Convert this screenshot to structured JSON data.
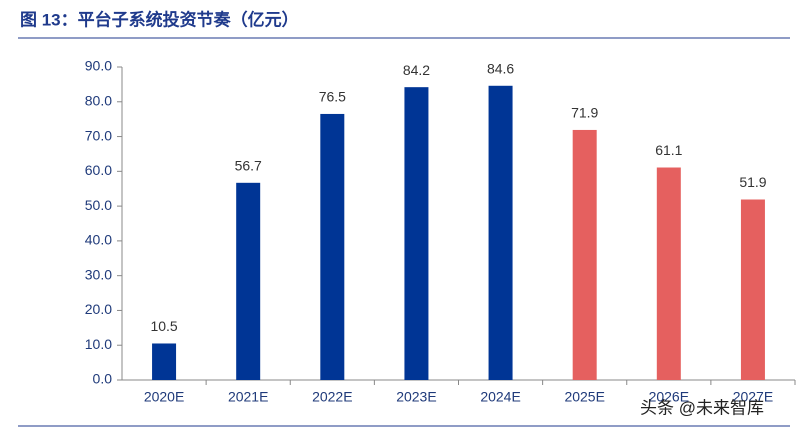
{
  "chart_data": {
    "type": "bar",
    "title": "图 13：平台子系统投资节奏（亿元）",
    "categories": [
      "2020E",
      "2021E",
      "2022E",
      "2023E",
      "2024E",
      "2025E",
      "2026E",
      "2027E"
    ],
    "values": [
      10.5,
      56.7,
      76.5,
      84.2,
      84.6,
      71.9,
      61.1,
      51.9
    ],
    "colors": [
      "#003595",
      "#003595",
      "#003595",
      "#003595",
      "#003595",
      "#e5605f",
      "#e5605f",
      "#e5605f"
    ],
    "ylim": [
      0,
      90
    ],
    "yticks": [
      {
        "value": 0,
        "label": "0.0"
      },
      {
        "value": 10,
        "label": "10.0"
      },
      {
        "value": 20,
        "label": "20.0"
      },
      {
        "value": 30,
        "label": "30.0"
      },
      {
        "value": 40,
        "label": "40.0"
      },
      {
        "value": 50,
        "label": "50.0"
      },
      {
        "value": 60,
        "label": "60.0"
      },
      {
        "value": 70,
        "label": "70.0"
      },
      {
        "value": 80,
        "label": "80.0"
      },
      {
        "value": 90,
        "label": "90.0"
      }
    ],
    "grid": false,
    "watermark": "头条 @未来智库"
  }
}
